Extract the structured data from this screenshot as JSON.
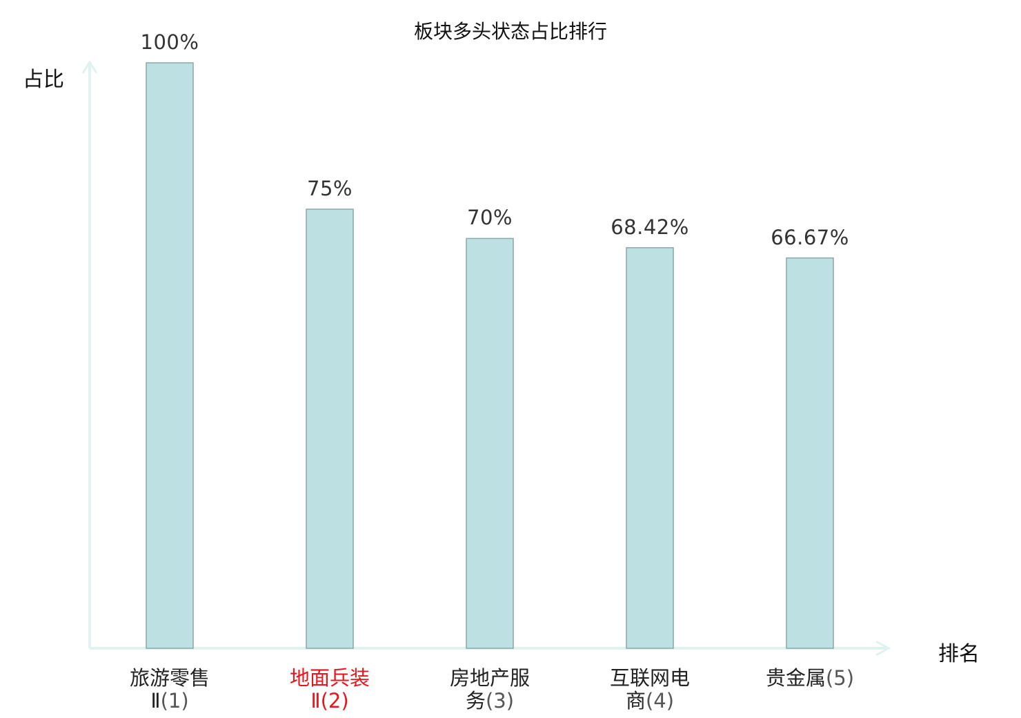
{
  "chart_data": {
    "type": "bar",
    "title": "板块多头状态占比排行",
    "ylabel": "占比",
    "xlabel": "排名",
    "ylim": [
      0,
      100
    ],
    "grid": false,
    "categories": [
      {
        "name_line1": "旅游零售",
        "name_line2": "Ⅱ",
        "rank": "(1)",
        "highlight": false
      },
      {
        "name_line1": "地面兵装",
        "name_line2": "Ⅱ",
        "rank": "(2)",
        "highlight": true
      },
      {
        "name_line1": "房地产服",
        "name_line2": "务",
        "rank": "(3)",
        "highlight": false
      },
      {
        "name_line1": "互联网电",
        "name_line2": "商",
        "rank": "(4)",
        "highlight": false
      },
      {
        "name_line1": "贵金属",
        "name_line2": "",
        "rank": "(5)",
        "highlight": false
      }
    ],
    "values": [
      100,
      75,
      70,
      68.42,
      66.67
    ],
    "value_labels": [
      "100%",
      "75%",
      "70%",
      "68.42%",
      "66.67%"
    ],
    "colors": {
      "bar_fill": "#bde0e2",
      "bar_stroke": "#8aa7aa",
      "axis": "#dff2ef",
      "highlight_label": "#e8161b"
    }
  }
}
